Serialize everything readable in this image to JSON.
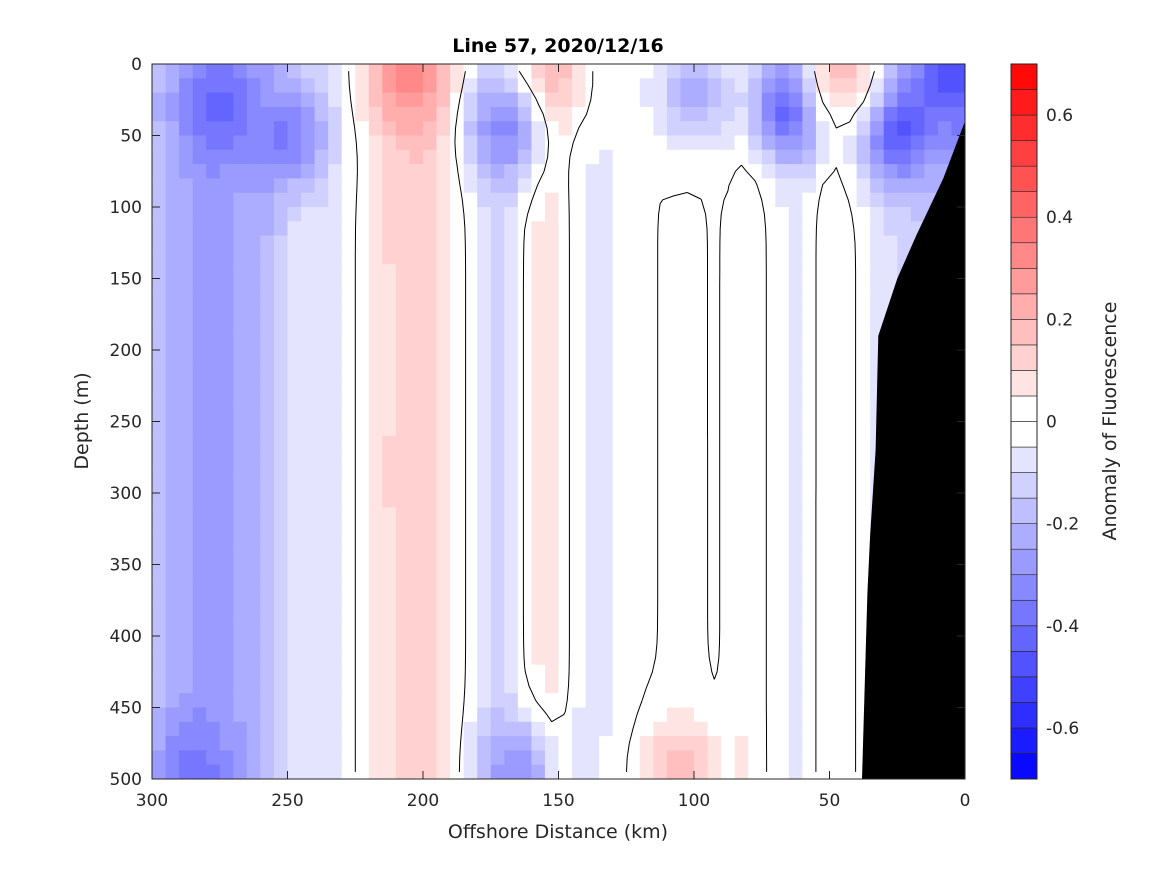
{
  "chart_data": {
    "type": "heatmap",
    "title": "Line 57, 2020/12/16",
    "xlabel": "Offshore Distance (km)",
    "ylabel": "Depth (m)",
    "xlim": [
      300,
      0
    ],
    "ylim": [
      0,
      500
    ],
    "x_reversed": true,
    "y_reversed": true,
    "x_ticks": [
      300,
      250,
      200,
      150,
      100,
      50,
      0
    ],
    "y_ticks": [
      0,
      50,
      100,
      150,
      200,
      250,
      300,
      350,
      400,
      450,
      500
    ],
    "colorbar": {
      "label": "Anomaly of Fluorescence",
      "range": [
        -0.7,
        0.7
      ],
      "levels": 28,
      "ticks": [
        -0.6,
        -0.4,
        -0.2,
        0,
        0.2,
        0.4,
        0.6
      ],
      "tick_labels": [
        "-0.6",
        "-0.4",
        "-0.2",
        "0",
        "0.2",
        "0.4",
        "0.6"
      ],
      "negative_color": "#0000ff",
      "zero_color": "#ffffff",
      "positive_color": "#ff0000"
    },
    "contour_level": 0,
    "bathymetry_color": "#000000",
    "bathymetry": [
      [
        0,
        40
      ],
      [
        8,
        80
      ],
      [
        18,
        120
      ],
      [
        25,
        150
      ],
      [
        32,
        190
      ],
      [
        33,
        270
      ],
      [
        35,
        330
      ],
      [
        36,
        370
      ],
      [
        38,
        500
      ]
    ],
    "columns": [
      {
        "x": 300,
        "mean": -0.17
      },
      {
        "x": 290,
        "mean": -0.22
      },
      {
        "x": 280,
        "mean": -0.28
      },
      {
        "x": 270,
        "mean": -0.24
      },
      {
        "x": 260,
        "mean": -0.22
      },
      {
        "x": 250,
        "mean": -0.12
      },
      {
        "x": 245,
        "mean": -0.05
      },
      {
        "x": 240,
        "mean": -0.09
      },
      {
        "x": 230,
        "mean": -0.04
      },
      {
        "x": 220,
        "mean": 0.04
      },
      {
        "x": 210,
        "mean": 0.12
      },
      {
        "x": 200,
        "mean": 0.14
      },
      {
        "x": 190,
        "mean": 0.08
      },
      {
        "x": 180,
        "mean": -0.06
      },
      {
        "x": 170,
        "mean": -0.12
      },
      {
        "x": 160,
        "mean": 0.05
      },
      {
        "x": 150,
        "mean": 0.08
      },
      {
        "x": 145,
        "mean": -0.04
      },
      {
        "x": 135,
        "mean": -0.06
      },
      {
        "x": 125,
        "mean": -0.03
      },
      {
        "x": 115,
        "mean": 0.0
      },
      {
        "x": 100,
        "mean": 0.01
      },
      {
        "x": 90,
        "mean": -0.01
      },
      {
        "x": 80,
        "mean": 0.06
      },
      {
        "x": 70,
        "mean": -0.03
      },
      {
        "x": 60,
        "mean": -0.06
      },
      {
        "x": 50,
        "mean": 0.06
      },
      {
        "x": 40,
        "mean": 0.0
      },
      {
        "x": 30,
        "mean": -0.08
      },
      {
        "x": 20,
        "mean": -0.12
      },
      {
        "x": 10,
        "mean": -0.18
      },
      {
        "x": 0,
        "mean": -0.3
      }
    ],
    "surface_features": [
      {
        "x": 275,
        "z": 30,
        "value": -0.42
      },
      {
        "x": 250,
        "z": 50,
        "value": -0.36
      },
      {
        "x": 205,
        "z": 10,
        "value": 0.32
      },
      {
        "x": 155,
        "z": 10,
        "value": 0.22
      },
      {
        "x": 170,
        "z": 45,
        "value": -0.32
      },
      {
        "x": 100,
        "z": 20,
        "value": -0.22
      },
      {
        "x": 65,
        "z": 30,
        "value": -0.45
      },
      {
        "x": 25,
        "z": 45,
        "value": -0.48
      },
      {
        "x": 5,
        "z": 5,
        "value": -0.5
      },
      {
        "x": 45,
        "z": 5,
        "value": 0.16
      },
      {
        "x": 105,
        "z": 495,
        "value": 0.18
      },
      {
        "x": 285,
        "z": 495,
        "value": -0.38
      },
      {
        "x": 165,
        "z": 495,
        "value": -0.3
      }
    ]
  }
}
